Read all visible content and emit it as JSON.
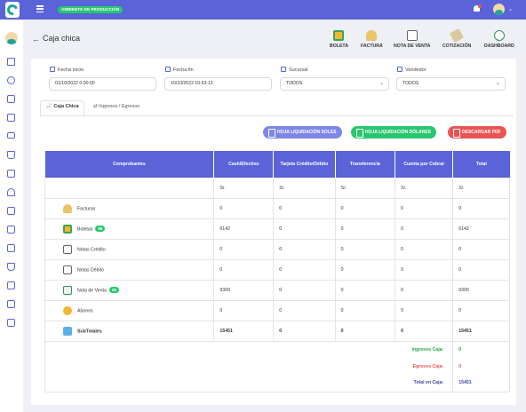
{
  "topbar": {
    "env_badge": "AMBIENTE DE PRODUCCIÓN"
  },
  "page": {
    "title": "Caja chica"
  },
  "toolbar": [
    {
      "label": "BOLETA",
      "icon": "boleta-icon"
    },
    {
      "label": "FACTURA",
      "icon": "factura-icon"
    },
    {
      "label": "NOTA DE VENTA",
      "icon": "nota-venta-icon"
    },
    {
      "label": "COTIZACIÓN",
      "icon": "cotizacion-icon"
    },
    {
      "label": "DASHBOARD",
      "icon": "dashboard-icon"
    }
  ],
  "filters": {
    "fecha_inicio": {
      "label": "Fecha inicio",
      "value": "01/10/2022 0:00:00"
    },
    "fecha_fin": {
      "label": "Fecha fin",
      "value": "10/10/2022 10:53:13"
    },
    "sucursal": {
      "label": "Sucursal",
      "value": "TODOS"
    },
    "vendedor": {
      "label": "Vendedor",
      "value": "TODOS"
    }
  },
  "tabs": [
    {
      "label": "Caja Chica"
    },
    {
      "label": "Ingresos / Egresos"
    }
  ],
  "actions": {
    "soles": "HOJA LIQUIDACIÓN SOLES",
    "dolares": "HOJA LIQUIDACIÓN DÓLARES",
    "pdf": "DESCARGAR PDF"
  },
  "table": {
    "headers": [
      "Comprobantes",
      "Cash/Efectivo",
      "Tarjeta Crédito/Débito",
      "Transferencia",
      "Cuenta por Cobrar",
      "Total"
    ],
    "currency_row": [
      "",
      "S/.",
      "S/.",
      "S/.",
      "S/.",
      "S/."
    ],
    "rows": [
      {
        "label": "Facturas",
        "badge": "",
        "values": [
          "0",
          "0",
          "0",
          "0",
          "0"
        ]
      },
      {
        "label": "Boletas",
        "badge": "86",
        "values": [
          "6142",
          "0",
          "0",
          "0",
          "6142"
        ]
      },
      {
        "label": "Notas Crédito",
        "badge": "",
        "values": [
          "0",
          "0",
          "0",
          "0",
          "0"
        ]
      },
      {
        "label": "Notas Débito",
        "badge": "",
        "values": [
          "0",
          "0",
          "0",
          "0",
          "0"
        ]
      },
      {
        "label": "Nota de Venta",
        "badge": "25",
        "values": [
          "9309",
          "0",
          "0",
          "0",
          "9309"
        ]
      },
      {
        "label": "Abonos",
        "badge": "",
        "values": [
          "0",
          "0",
          "0",
          "0",
          "0"
        ]
      },
      {
        "label": "SubTotales",
        "badge": "",
        "values": [
          "15451",
          "0",
          "0",
          "0",
          "15451"
        ]
      }
    ],
    "summary": [
      {
        "label": "Ingresos Caja:",
        "value": "0",
        "color": "#28a745"
      },
      {
        "label": "Egresos Caja:",
        "value": "0",
        "color": "#ea5455"
      },
      {
        "label": "Total en Caja:",
        "value": "15451",
        "color": "#3f4aa8"
      }
    ]
  },
  "colors": {
    "primary": "#5a63d8",
    "success": "#28c76f",
    "danger": "#ea5455",
    "purple_btn": "#7e87e8"
  }
}
